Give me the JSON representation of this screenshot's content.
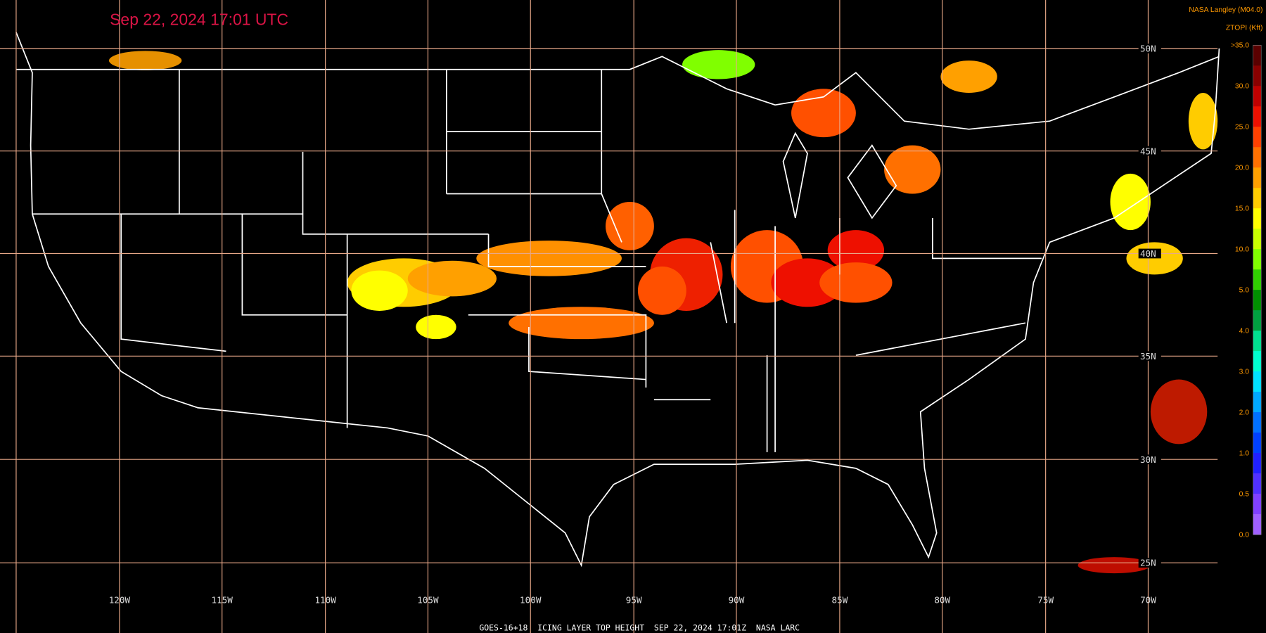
{
  "header": {
    "timestamp": "Sep 22, 2024 17:01 UTC",
    "credit": "NASA Langley (M04.0)"
  },
  "map": {
    "latitude_labels": [
      "50N",
      "45N",
      "40N",
      "35N",
      "30N",
      "25N"
    ],
    "longitude_labels": [
      "120W",
      "115W",
      "110W",
      "105W",
      "100W",
      "95W",
      "90W",
      "85W",
      "80W",
      "75W",
      "70W"
    ]
  },
  "legend": {
    "title": "ZTOPI (Kft)",
    "labels": [
      ">35.0",
      "30.0",
      "25.0",
      "20.0",
      "15.0",
      "10.0",
      "5.0",
      "4.0",
      "3.0",
      "2.0",
      "1.0",
      "0.5",
      "0.0"
    ],
    "colors": [
      "#5a0000",
      "#8a0000",
      "#c00000",
      "#ee1000",
      "#ff4000",
      "#ff7000",
      "#ffa000",
      "#ffcc00",
      "#ffff00",
      "#c8ff00",
      "#80ff00",
      "#30d000",
      "#009000",
      "#00a040",
      "#00e090",
      "#00ffd0",
      "#00e0ff",
      "#00a8ff",
      "#0070ff",
      "#0040ff",
      "#2020ff",
      "#5030ff",
      "#8040ff",
      "#a060ff"
    ]
  },
  "footer": "GOES-16+18  ICING LAYER TOP HEIGHT  SEP 22, 2024 17:01Z  NASA LARC"
}
